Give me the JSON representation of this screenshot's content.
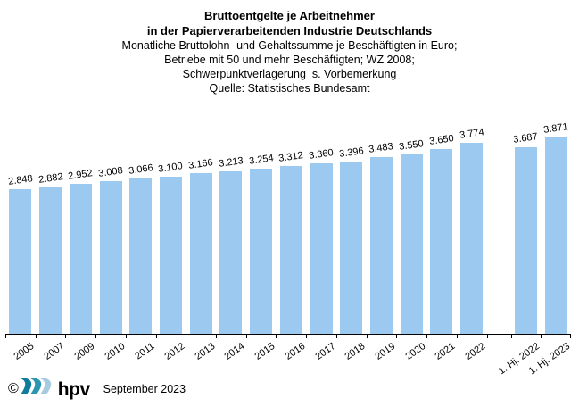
{
  "title": {
    "line1": "Bruttoentgelte je Arbeitnehmer",
    "line2": "in der Papierverarbeitenden Industrie Deutschlands",
    "sub": [
      "Monatliche Bruttolohn- und Gehaltssumme je Beschäftigten in Euro;",
      "Betriebe mit 50 und mehr Beschäftigten; WZ 2008;",
      "Schwerpunktverlagerung  s. Vorbemerkung",
      "Quelle: Statistisches Bundesamt"
    ]
  },
  "chart_data": {
    "type": "bar",
    "title": "Bruttoentgelte je Arbeitnehmer in der Papierverarbeitenden Industrie Deutschlands",
    "categories": [
      "2005",
      "2007",
      "2009",
      "2010",
      "2011",
      "2012",
      "2013",
      "2014",
      "2015",
      "2016",
      "2017",
      "2018",
      "2019",
      "2020",
      "2021",
      "2022",
      "1. Hj. 2022",
      "1. Hj. 2023"
    ],
    "values": [
      2848,
      2882,
      2952,
      3008,
      3066,
      3100,
      3166,
      3213,
      3254,
      3312,
      3360,
      3396,
      3483,
      3550,
      3650,
      3774,
      3687,
      3871
    ],
    "value_labels": [
      "2.848",
      "2.882",
      "2.952",
      "3.008",
      "3.066",
      "3.100",
      "3.166",
      "3.213",
      "3.254",
      "3.312",
      "3.360",
      "3.396",
      "3.483",
      "3.550",
      "3.650",
      "3.774",
      "3.687",
      "3.871"
    ],
    "gap_before_index": 16,
    "unit": "Euro je Beschäftigten (monatlich)",
    "ylim": [
      0,
      4000
    ],
    "grid": false,
    "legend": false,
    "bar_color": "#9CC9F0",
    "axis_color": "#000000"
  },
  "footer": {
    "copyright": "©",
    "logo_icon": "hpv-waves-icon",
    "logo_text": "hpv",
    "date": "September 2023"
  },
  "colors": {
    "logo_wave_1": "#0F7C9B",
    "logo_wave_2": "#2C96AE",
    "logo_wave_3": "#A6CADF"
  }
}
